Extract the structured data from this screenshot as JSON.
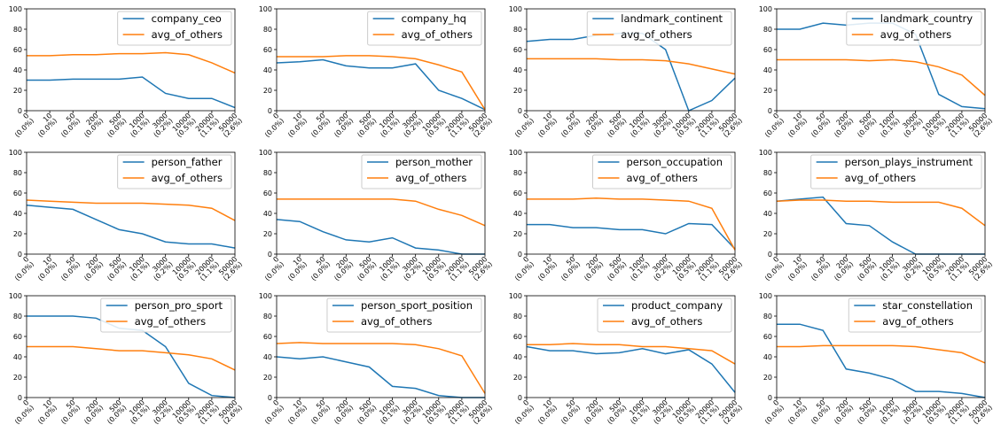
{
  "chart_data": [
    {
      "type": "line",
      "categories": [
        "0\n(0.0%)",
        "10\n(0.0%)",
        "50\n(0.0%)",
        "200\n(0.0%)",
        "500\n(0.0%)",
        "1000\n(0.1%)",
        "3000\n(0.2%)",
        "10000\n(0.5%)",
        "20000\n(1.1%)",
        "50000\n(2.6%)"
      ],
      "ylim": [
        0,
        100
      ],
      "yticks": [
        0,
        20,
        40,
        60,
        80,
        100
      ],
      "legend": "upper right",
      "series": [
        {
          "name": "company_ceo",
          "color": "#1f77b4",
          "values": [
            30,
            30,
            31,
            31,
            31,
            33,
            17,
            12,
            12,
            3
          ]
        },
        {
          "name": "avg_of_others",
          "color": "#ff7f0e",
          "values": [
            54,
            54,
            55,
            55,
            56,
            56,
            57,
            55,
            47,
            37
          ]
        }
      ]
    },
    {
      "type": "line",
      "categories": [
        "0\n(0.0%)",
        "10\n(0.0%)",
        "50\n(0.0%)",
        "200\n(0.0%)",
        "500\n(0.0%)",
        "1000\n(0.1%)",
        "3000\n(0.2%)",
        "10000\n(0.5%)",
        "20000\n(1.1%)",
        "50000\n(2.6%)"
      ],
      "ylim": [
        0,
        100
      ],
      "yticks": [
        0,
        20,
        40,
        60,
        80,
        100
      ],
      "legend": "upper right",
      "series": [
        {
          "name": "company_hq",
          "color": "#1f77b4",
          "values": [
            47,
            48,
            50,
            44,
            42,
            42,
            46,
            20,
            12,
            1
          ]
        },
        {
          "name": "avg_of_others",
          "color": "#ff7f0e",
          "values": [
            53,
            53,
            53,
            54,
            54,
            53,
            51,
            45,
            38,
            1
          ]
        }
      ]
    },
    {
      "type": "line",
      "categories": [
        "0\n(0.0%)",
        "10\n(0.0%)",
        "50\n(0.0%)",
        "200\n(0.0%)",
        "500\n(0.0%)",
        "1000\n(0.1%)",
        "3000\n(0.2%)",
        "10000\n(0.5%)",
        "20000\n(1.1%)",
        "50000\n(2.6%)"
      ],
      "ylim": [
        0,
        100
      ],
      "yticks": [
        0,
        20,
        40,
        60,
        80,
        100
      ],
      "legend": "upper right",
      "series": [
        {
          "name": "landmark_continent",
          "color": "#1f77b4",
          "values": [
            68,
            70,
            70,
            74,
            76,
            76,
            60,
            0,
            10,
            32
          ]
        },
        {
          "name": "avg_of_others",
          "color": "#ff7f0e",
          "values": [
            51,
            51,
            51,
            51,
            50,
            50,
            49,
            46,
            41,
            36
          ]
        }
      ]
    },
    {
      "type": "line",
      "categories": [
        "0\n(0.0%)",
        "10\n(0.0%)",
        "50\n(0.0%)",
        "200\n(0.0%)",
        "500\n(0.0%)",
        "1000\n(0.1%)",
        "3000\n(0.2%)",
        "10000\n(0.5%)",
        "20000\n(1.1%)",
        "50000\n(2.6%)"
      ],
      "ylim": [
        0,
        100
      ],
      "yticks": [
        0,
        20,
        40,
        60,
        80,
        100
      ],
      "legend": "upper right",
      "series": [
        {
          "name": "landmark_country",
          "color": "#1f77b4",
          "values": [
            80,
            80,
            86,
            84,
            86,
            86,
            75,
            16,
            4,
            2
          ]
        },
        {
          "name": "avg_of_others",
          "color": "#ff7f0e",
          "values": [
            50,
            50,
            50,
            50,
            49,
            50,
            48,
            43,
            35,
            15
          ]
        }
      ]
    },
    {
      "type": "line",
      "categories": [
        "0\n(0.0%)",
        "10\n(0.0%)",
        "50\n(0.0%)",
        "200\n(0.0%)",
        "500\n(0.0%)",
        "1000\n(0.1%)",
        "3000\n(0.2%)",
        "10000\n(0.5%)",
        "20000\n(1.1%)",
        "50000\n(2.6%)"
      ],
      "ylim": [
        0,
        100
      ],
      "yticks": [
        0,
        20,
        40,
        60,
        80,
        100
      ],
      "legend": "upper right",
      "series": [
        {
          "name": "person_father",
          "color": "#1f77b4",
          "values": [
            48,
            46,
            44,
            34,
            24,
            20,
            12,
            10,
            10,
            6
          ]
        },
        {
          "name": "avg_of_others",
          "color": "#ff7f0e",
          "values": [
            53,
            52,
            51,
            50,
            50,
            50,
            49,
            48,
            45,
            33
          ]
        }
      ]
    },
    {
      "type": "line",
      "categories": [
        "0\n(0.0%)",
        "10\n(0.0%)",
        "50\n(0.0%)",
        "200\n(0.0%)",
        "500\n(0.0%)",
        "1000\n(0.1%)",
        "3000\n(0.2%)",
        "10000\n(0.5%)",
        "20000\n(1.1%)",
        "50000\n(2.6%)"
      ],
      "ylim": [
        0,
        100
      ],
      "yticks": [
        0,
        20,
        40,
        60,
        80,
        100
      ],
      "legend": "upper right",
      "series": [
        {
          "name": "person_mother",
          "color": "#1f77b4",
          "values": [
            34,
            32,
            22,
            14,
            12,
            16,
            6,
            4,
            0,
            0
          ]
        },
        {
          "name": "avg_of_others",
          "color": "#ff7f0e",
          "values": [
            54,
            54,
            54,
            54,
            54,
            54,
            52,
            44,
            38,
            28
          ]
        }
      ]
    },
    {
      "type": "line",
      "categories": [
        "0\n(0.0%)",
        "10\n(0.0%)",
        "50\n(0.0%)",
        "200\n(0.0%)",
        "500\n(0.0%)",
        "1000\n(0.1%)",
        "3000\n(0.2%)",
        "10000\n(0.5%)",
        "20000\n(1.1%)",
        "50000\n(2.6%)"
      ],
      "ylim": [
        0,
        100
      ],
      "yticks": [
        0,
        20,
        40,
        60,
        80,
        100
      ],
      "legend": "upper right",
      "series": [
        {
          "name": "person_occupation",
          "color": "#1f77b4",
          "values": [
            29,
            29,
            26,
            26,
            24,
            24,
            20,
            30,
            29,
            5
          ]
        },
        {
          "name": "avg_of_others",
          "color": "#ff7f0e",
          "values": [
            54,
            54,
            54,
            55,
            54,
            54,
            53,
            52,
            45,
            4
          ]
        }
      ]
    },
    {
      "type": "line",
      "categories": [
        "0\n(0.0%)",
        "10\n(0.0%)",
        "50\n(0.0%)",
        "200\n(0.0%)",
        "500\n(0.0%)",
        "1000\n(0.1%)",
        "3000\n(0.2%)",
        "10000\n(0.5%)",
        "20000\n(1.1%)",
        "50000\n(2.6%)"
      ],
      "ylim": [
        0,
        100
      ],
      "yticks": [
        0,
        20,
        40,
        60,
        80,
        100
      ],
      "legend": "upper right",
      "series": [
        {
          "name": "person_plays_instrument",
          "color": "#1f77b4",
          "values": [
            52,
            54,
            56,
            30,
            28,
            12,
            0,
            0,
            0,
            0
          ]
        },
        {
          "name": "avg_of_others",
          "color": "#ff7f0e",
          "values": [
            52,
            53,
            53,
            52,
            52,
            51,
            51,
            51,
            45,
            28
          ]
        }
      ]
    },
    {
      "type": "line",
      "categories": [
        "0\n(0.0%)",
        "10\n(0.0%)",
        "50\n(0.0%)",
        "200\n(0.0%)",
        "500\n(0.0%)",
        "1000\n(0.1%)",
        "3000\n(0.2%)",
        "10000\n(0.5%)",
        "20000\n(1.1%)",
        "50000\n(2.6%)"
      ],
      "ylim": [
        0,
        100
      ],
      "yticks": [
        0,
        20,
        40,
        60,
        80,
        100
      ],
      "legend": "upper right",
      "series": [
        {
          "name": "person_pro_sport",
          "color": "#1f77b4",
          "values": [
            80,
            80,
            80,
            78,
            68,
            66,
            50,
            14,
            2,
            0
          ]
        },
        {
          "name": "avg_of_others",
          "color": "#ff7f0e",
          "values": [
            50,
            50,
            50,
            48,
            46,
            46,
            44,
            42,
            38,
            27
          ]
        }
      ]
    },
    {
      "type": "line",
      "categories": [
        "0\n(0.0%)",
        "10\n(0.0%)",
        "50\n(0.0%)",
        "200\n(0.0%)",
        "500\n(0.0%)",
        "1000\n(0.1%)",
        "3000\n(0.2%)",
        "10000\n(0.5%)",
        "20000\n(1.1%)",
        "50000\n(2.6%)"
      ],
      "ylim": [
        0,
        100
      ],
      "yticks": [
        0,
        20,
        40,
        60,
        80,
        100
      ],
      "legend": "upper right",
      "series": [
        {
          "name": "person_sport_position",
          "color": "#1f77b4",
          "values": [
            40,
            38,
            40,
            35,
            30,
            11,
            9,
            2,
            0,
            0
          ]
        },
        {
          "name": "avg_of_others",
          "color": "#ff7f0e",
          "values": [
            53,
            54,
            53,
            53,
            53,
            53,
            52,
            48,
            41,
            4
          ]
        }
      ]
    },
    {
      "type": "line",
      "categories": [
        "0\n(0.0%)",
        "10\n(0.0%)",
        "50\n(0.0%)",
        "200\n(0.0%)",
        "500\n(0.0%)",
        "1000\n(0.1%)",
        "3000\n(0.2%)",
        "10000\n(0.5%)",
        "20000\n(1.1%)",
        "50000\n(2.6%)"
      ],
      "ylim": [
        0,
        100
      ],
      "yticks": [
        0,
        20,
        40,
        60,
        80,
        100
      ],
      "legend": "upper right",
      "series": [
        {
          "name": "product_company",
          "color": "#1f77b4",
          "values": [
            50,
            46,
            46,
            43,
            44,
            48,
            43,
            47,
            33,
            5
          ]
        },
        {
          "name": "avg_of_others",
          "color": "#ff7f0e",
          "values": [
            52,
            52,
            53,
            52,
            52,
            50,
            50,
            48,
            46,
            33
          ]
        }
      ]
    },
    {
      "type": "line",
      "categories": [
        "0\n(0.0%)",
        "10\n(0.0%)",
        "50\n(0.0%)",
        "200\n(0.0%)",
        "500\n(0.0%)",
        "1000\n(0.1%)",
        "3000\n(0.2%)",
        "10000\n(0.5%)",
        "20000\n(1.1%)",
        "50000\n(2.6%)"
      ],
      "ylim": [
        0,
        100
      ],
      "yticks": [
        0,
        20,
        40,
        60,
        80,
        100
      ],
      "legend": "upper right",
      "series": [
        {
          "name": "star_constellation",
          "color": "#1f77b4",
          "values": [
            72,
            72,
            66,
            28,
            24,
            18,
            6,
            6,
            4,
            0
          ]
        },
        {
          "name": "avg_of_others",
          "color": "#ff7f0e",
          "values": [
            50,
            50,
            51,
            51,
            51,
            51,
            50,
            47,
            44,
            34
          ]
        }
      ]
    }
  ]
}
